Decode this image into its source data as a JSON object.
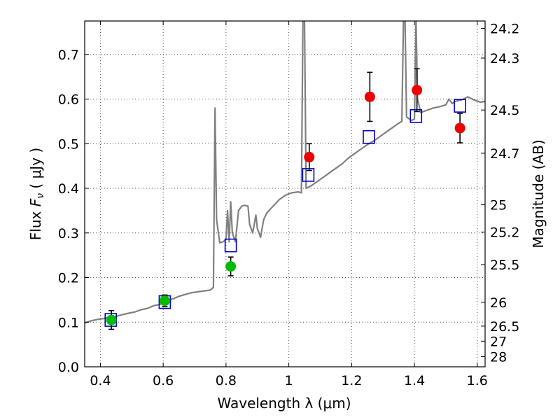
{
  "chart_data": {
    "type": "scatter",
    "xlabel": "Wavelength  λ (μm)",
    "ylabel_prefix": "Flux  ",
    "ylabel_symbol": "F",
    "ylabel_subscript": "ν",
    "ylabel_unit": "  ( μJy )",
    "y2label": "Magnitude (AB)",
    "xlim": [
      0.35,
      1.625
    ],
    "ylim": [
      0.0,
      0.775
    ],
    "grid": true,
    "x_ticks": [
      0.4,
      0.6,
      0.8,
      1.0,
      1.2,
      1.4,
      1.6
    ],
    "x_tick_labels": [
      "0.4",
      "0.6",
      "0.8",
      "1",
      "1.2",
      "1.4",
      "1.6"
    ],
    "y_ticks": [
      0.0,
      0.1,
      0.2,
      0.3,
      0.4,
      0.5,
      0.6,
      0.7
    ],
    "y_tick_labels": [
      "0.0",
      "0.1",
      "0.2",
      "0.3",
      "0.4",
      "0.5",
      "0.6",
      "0.7"
    ],
    "mag_ticks": [
      24.2,
      24.3,
      24.5,
      24.7,
      25,
      25.2,
      25.5,
      26,
      26.5,
      27,
      28
    ],
    "mag_tick_labels": [
      "24.2",
      "24.3",
      "24.5",
      "24.7",
      "25",
      "25.2",
      "25.5",
      "26",
      "26.5",
      "27",
      "28"
    ],
    "colors": {
      "sed": "#808080",
      "model_box": "#0000cc",
      "green": "#00bb00",
      "red": "#ee0000",
      "errorbar": "#000000",
      "grid": "#555555"
    },
    "series": [
      {
        "type": "line",
        "points": [
          [
            0.35,
            0.098
          ],
          [
            0.37,
            0.103
          ],
          [
            0.39,
            0.106
          ],
          [
            0.41,
            0.108
          ],
          [
            0.43,
            0.112
          ],
          [
            0.45,
            0.113
          ],
          [
            0.47,
            0.117
          ],
          [
            0.49,
            0.12
          ],
          [
            0.51,
            0.123
          ],
          [
            0.53,
            0.128
          ],
          [
            0.55,
            0.131
          ],
          [
            0.57,
            0.137
          ],
          [
            0.59,
            0.14
          ],
          [
            0.61,
            0.147
          ],
          [
            0.63,
            0.152
          ],
          [
            0.65,
            0.158
          ],
          [
            0.67,
            0.162
          ],
          [
            0.69,
            0.166
          ],
          [
            0.71,
            0.168
          ],
          [
            0.73,
            0.17
          ],
          [
            0.75,
            0.172
          ],
          [
            0.76,
            0.178
          ],
          [
            0.765,
            0.58
          ],
          [
            0.77,
            0.33
          ],
          [
            0.78,
            0.278
          ],
          [
            0.79,
            0.28
          ],
          [
            0.8,
            0.285
          ],
          [
            0.805,
            0.35
          ],
          [
            0.81,
            0.28
          ],
          [
            0.815,
            0.37
          ],
          [
            0.82,
            0.3
          ],
          [
            0.83,
            0.28
          ],
          [
            0.84,
            0.35
          ],
          [
            0.85,
            0.36
          ],
          [
            0.86,
            0.362
          ],
          [
            0.87,
            0.36
          ],
          [
            0.875,
            0.32
          ],
          [
            0.885,
            0.3
          ],
          [
            0.895,
            0.34
          ],
          [
            0.9,
            0.31
          ],
          [
            0.91,
            0.29
          ],
          [
            0.92,
            0.33
          ],
          [
            0.93,
            0.345
          ],
          [
            0.95,
            0.36
          ],
          [
            0.97,
            0.375
          ],
          [
            0.99,
            0.385
          ],
          [
            1.01,
            0.39
          ],
          [
            1.03,
            0.392
          ],
          [
            1.04,
            0.39
          ],
          [
            1.045,
            0.78
          ],
          [
            1.05,
            0.78
          ],
          [
            1.055,
            0.4
          ],
          [
            1.07,
            0.405
          ],
          [
            1.09,
            0.415
          ],
          [
            1.11,
            0.425
          ],
          [
            1.13,
            0.435
          ],
          [
            1.15,
            0.445
          ],
          [
            1.17,
            0.455
          ],
          [
            1.19,
            0.468
          ],
          [
            1.21,
            0.478
          ],
          [
            1.23,
            0.488
          ],
          [
            1.25,
            0.498
          ],
          [
            1.27,
            0.506
          ],
          [
            1.29,
            0.516
          ],
          [
            1.31,
            0.526
          ],
          [
            1.33,
            0.536
          ],
          [
            1.35,
            0.546
          ],
          [
            1.36,
            0.55
          ],
          [
            1.365,
            0.78
          ],
          [
            1.37,
            0.78
          ],
          [
            1.375,
            0.56
          ],
          [
            1.39,
            0.552
          ],
          [
            1.4,
            0.555
          ],
          [
            1.405,
            0.78
          ],
          [
            1.41,
            0.6
          ],
          [
            1.42,
            0.57
          ],
          [
            1.44,
            0.575
          ],
          [
            1.46,
            0.58
          ],
          [
            1.48,
            0.583
          ],
          [
            1.5,
            0.587
          ],
          [
            1.51,
            0.6
          ],
          [
            1.52,
            0.59
          ],
          [
            1.53,
            0.595
          ],
          [
            1.55,
            0.598
          ],
          [
            1.57,
            0.605
          ],
          [
            1.59,
            0.598
          ],
          [
            1.61,
            0.593
          ],
          [
            1.625,
            0.595
          ]
        ]
      },
      {
        "type": "model_boxes",
        "points": [
          [
            0.433,
            0.105
          ],
          [
            0.605,
            0.145
          ],
          [
            0.815,
            0.272
          ],
          [
            1.062,
            0.43
          ],
          [
            1.255,
            0.515
          ],
          [
            1.405,
            0.562
          ],
          [
            1.545,
            0.585
          ]
        ]
      },
      {
        "type": "points",
        "color": "green",
        "points": [
          {
            "x": 0.435,
            "y": 0.105,
            "err": 0.021
          },
          {
            "x": 0.605,
            "y": 0.148,
            "err": 0.013
          },
          {
            "x": 0.815,
            "y": 0.225,
            "err": 0.021
          }
        ]
      },
      {
        "type": "points",
        "color": "red",
        "points": [
          {
            "x": 1.065,
            "y": 0.47,
            "err": 0.03
          },
          {
            "x": 1.258,
            "y": 0.605,
            "err": 0.055
          },
          {
            "x": 1.408,
            "y": 0.62,
            "err": 0.048
          },
          {
            "x": 1.545,
            "y": 0.535,
            "err": 0.033
          }
        ]
      }
    ]
  }
}
